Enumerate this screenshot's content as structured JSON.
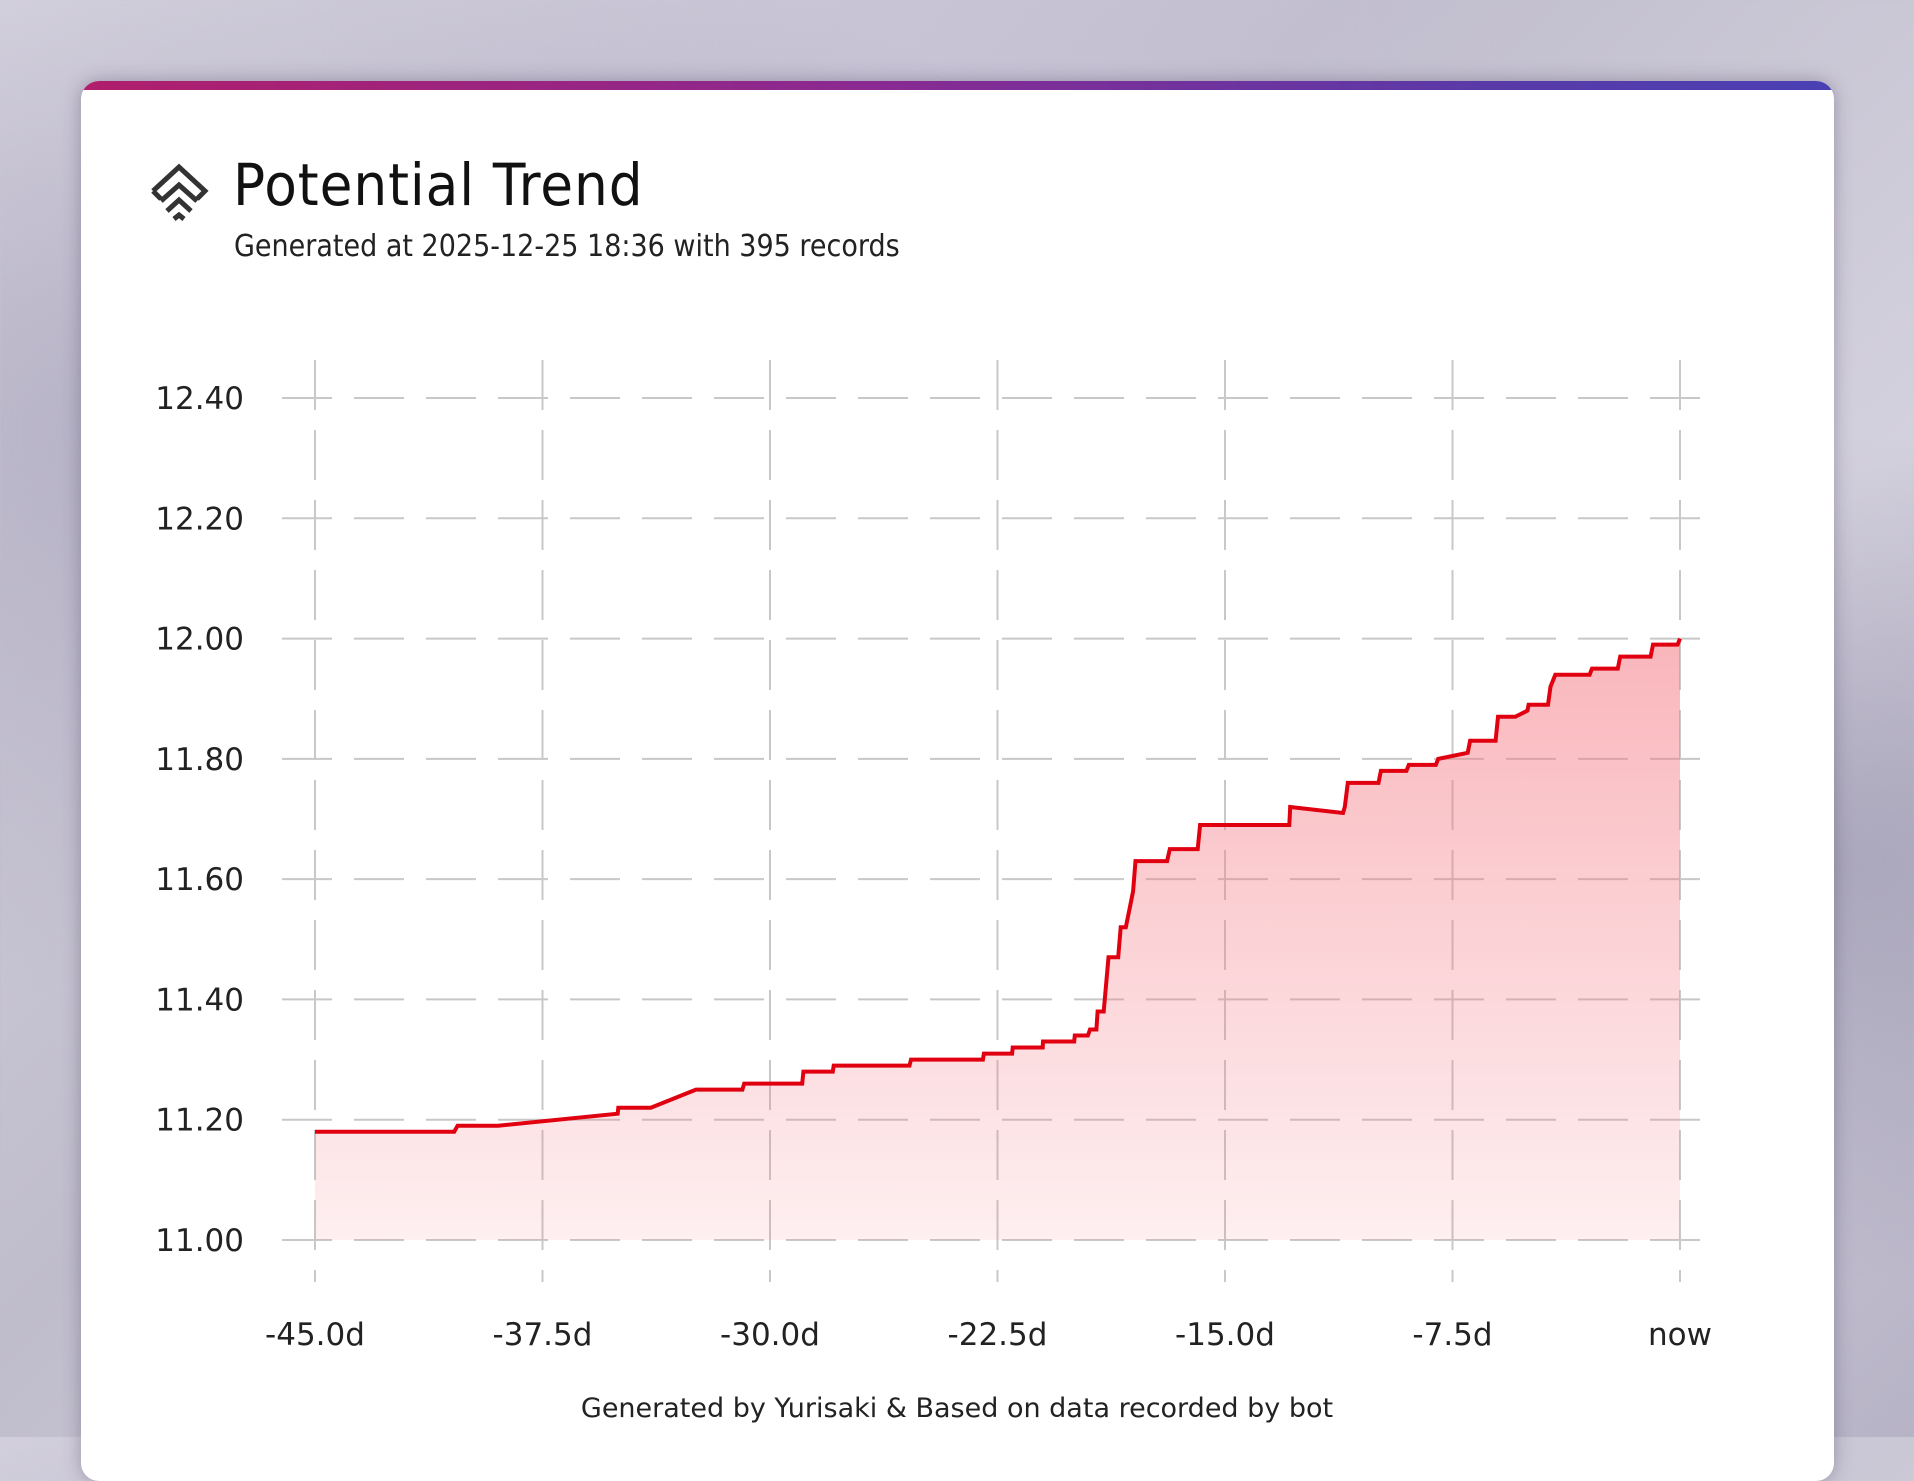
{
  "header": {
    "title": "Potential Trend",
    "subtitle": "Generated at 2025-12-25 18:36 with 395 records",
    "icon": "chevrons-up-diamond-icon"
  },
  "footer": {
    "text": "Generated by Yurisaki & Based on data recorded by bot"
  },
  "colors": {
    "line": "#e00010",
    "fill": "#f5707a",
    "grid": "#c8c8c8",
    "bar_start": "#b01e6c",
    "bar_end": "#4a40b4"
  },
  "chart_data": {
    "type": "area",
    "title": "Potential Trend",
    "xlabel": "",
    "ylabel": "",
    "xlim": [
      -45,
      0
    ],
    "ylim": [
      11.0,
      12.4
    ],
    "grid": true,
    "xticks": [
      {
        "v": -45,
        "label": "-45.0d"
      },
      {
        "v": -37.5,
        "label": "-37.5d"
      },
      {
        "v": -30,
        "label": "-30.0d"
      },
      {
        "v": -22.5,
        "label": "-22.5d"
      },
      {
        "v": -15,
        "label": "-15.0d"
      },
      {
        "v": -7.5,
        "label": "-7.5d"
      },
      {
        "v": 0,
        "label": "now"
      }
    ],
    "yticks": [
      {
        "v": 12.4,
        "label": "12.40"
      },
      {
        "v": 12.2,
        "label": "12.20"
      },
      {
        "v": 12.0,
        "label": "12.00"
      },
      {
        "v": 11.8,
        "label": "11.80"
      },
      {
        "v": 11.6,
        "label": "11.60"
      },
      {
        "v": 11.4,
        "label": "11.40"
      },
      {
        "v": 11.2,
        "label": "11.20"
      },
      {
        "v": 11.0,
        "label": "11.00"
      }
    ],
    "series": [
      {
        "name": "Potential",
        "points": [
          [
            -45,
            11.18
          ],
          [
            -40.41,
            11.18
          ],
          [
            -40.3,
            11.19
          ],
          [
            -38.96,
            11.19
          ],
          [
            -35.02,
            11.21
          ],
          [
            -35.0,
            11.22
          ],
          [
            -33.93,
            11.22
          ],
          [
            -32.44,
            11.25
          ],
          [
            -30.91,
            11.25
          ],
          [
            -30.85,
            11.26
          ],
          [
            -28.94,
            11.26
          ],
          [
            -28.9,
            11.28
          ],
          [
            -27.93,
            11.28
          ],
          [
            -27.9,
            11.29
          ],
          [
            -25.4,
            11.29
          ],
          [
            -25.35,
            11.3
          ],
          [
            -22.98,
            11.3
          ],
          [
            -22.95,
            11.31
          ],
          [
            -22.02,
            11.31
          ],
          [
            -22.0,
            11.32
          ],
          [
            -21.01,
            11.32
          ],
          [
            -21.0,
            11.33
          ],
          [
            -19.97,
            11.33
          ],
          [
            -19.95,
            11.34
          ],
          [
            -19.52,
            11.34
          ],
          [
            -19.45,
            11.35
          ],
          [
            -19.24,
            11.35
          ],
          [
            -19.2,
            11.38
          ],
          [
            -19.0,
            11.38
          ],
          [
            -18.84,
            11.47
          ],
          [
            -18.52,
            11.47
          ],
          [
            -18.44,
            11.52
          ],
          [
            -18.27,
            11.52
          ],
          [
            -18.15,
            11.55
          ],
          [
            -18.03,
            11.58
          ],
          [
            -17.95,
            11.63
          ],
          [
            -16.91,
            11.63
          ],
          [
            -16.82,
            11.65
          ],
          [
            -15.9,
            11.65
          ],
          [
            -15.82,
            11.69
          ],
          [
            -12.88,
            11.69
          ],
          [
            -12.85,
            11.72
          ],
          [
            -11.11,
            11.71
          ],
          [
            -11.05,
            11.72
          ],
          [
            -10.95,
            11.76
          ],
          [
            -9.94,
            11.76
          ],
          [
            -9.86,
            11.78
          ],
          [
            -9.02,
            11.78
          ],
          [
            -8.94,
            11.79
          ],
          [
            -8.05,
            11.79
          ],
          [
            -7.97,
            11.8
          ],
          [
            -7.0,
            11.81
          ],
          [
            -6.92,
            11.83
          ],
          [
            -6.08,
            11.83
          ],
          [
            -6.0,
            11.87
          ],
          [
            -5.43,
            11.87
          ],
          [
            -5.03,
            11.88
          ],
          [
            -4.99,
            11.89
          ],
          [
            -4.35,
            11.89
          ],
          [
            -4.27,
            11.92
          ],
          [
            -4.11,
            11.94
          ],
          [
            -2.98,
            11.94
          ],
          [
            -2.9,
            11.95
          ],
          [
            -2.05,
            11.95
          ],
          [
            -1.97,
            11.97
          ],
          [
            -0.97,
            11.97
          ],
          [
            -0.89,
            11.99
          ],
          [
            -0.08,
            11.99
          ],
          [
            0,
            12.0
          ]
        ]
      }
    ]
  }
}
